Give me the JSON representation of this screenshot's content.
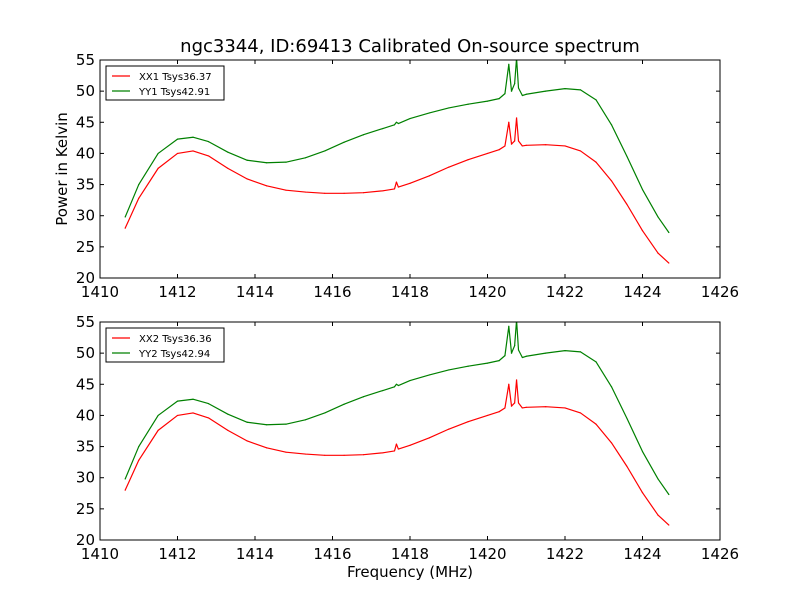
{
  "title": "ngc3344, ID:69413 Calibrated On-source spectrum",
  "xlabel": "Frequency (MHz)",
  "ylabel": "Power in Kelvin",
  "colors": {
    "xx": "#ff0000",
    "yy": "#008000",
    "axes": "#000000",
    "background": "#ffffff"
  },
  "chart_data": [
    {
      "type": "line",
      "ylabel": "Power in Kelvin",
      "xlabel": "",
      "xlim": [
        1410,
        1426
      ],
      "ylim": [
        20,
        55
      ],
      "xticks": [
        1410,
        1412,
        1414,
        1416,
        1418,
        1420,
        1422,
        1424,
        1426
      ],
      "yticks": [
        20,
        25,
        30,
        35,
        40,
        45,
        50,
        55
      ],
      "grid": false,
      "legend_position": "top-left",
      "series": [
        {
          "name": "XX1 Tsys36.37",
          "color": "#ff0000",
          "x": [
            1410.65,
            1411.0,
            1411.5,
            1412.0,
            1412.4,
            1412.8,
            1413.3,
            1413.8,
            1414.3,
            1414.8,
            1415.3,
            1415.8,
            1416.3,
            1416.8,
            1417.3,
            1417.6,
            1417.65,
            1417.7,
            1418.0,
            1418.5,
            1419.0,
            1419.5,
            1420.0,
            1420.3,
            1420.45,
            1420.55,
            1420.62,
            1420.7,
            1420.75,
            1420.8,
            1420.9,
            1421.0,
            1421.5,
            1422.0,
            1422.4,
            1422.8,
            1423.2,
            1423.6,
            1424.0,
            1424.4,
            1424.68
          ],
          "values": [
            28.0,
            32.8,
            37.6,
            40.0,
            40.4,
            39.6,
            37.6,
            35.9,
            34.8,
            34.1,
            33.8,
            33.6,
            33.6,
            33.7,
            34.0,
            34.3,
            35.4,
            34.6,
            35.2,
            36.4,
            37.8,
            39.0,
            40.0,
            40.6,
            41.2,
            45.0,
            41.5,
            42.0,
            45.7,
            42.0,
            41.2,
            41.3,
            41.4,
            41.2,
            40.4,
            38.6,
            35.6,
            31.8,
            27.6,
            24.0,
            22.4
          ]
        },
        {
          "name": "YY1 Tsys42.91",
          "color": "#008000",
          "x": [
            1410.65,
            1411.0,
            1411.5,
            1412.0,
            1412.4,
            1412.8,
            1413.3,
            1413.8,
            1414.3,
            1414.8,
            1415.3,
            1415.8,
            1416.3,
            1416.8,
            1417.3,
            1417.6,
            1417.65,
            1417.7,
            1418.0,
            1418.5,
            1419.0,
            1419.5,
            1420.0,
            1420.3,
            1420.45,
            1420.55,
            1420.62,
            1420.7,
            1420.75,
            1420.8,
            1420.9,
            1421.0,
            1421.5,
            1422.0,
            1422.4,
            1422.8,
            1423.2,
            1423.6,
            1424.0,
            1424.4,
            1424.68
          ],
          "values": [
            29.8,
            35.0,
            40.0,
            42.3,
            42.6,
            41.9,
            40.2,
            38.9,
            38.5,
            38.6,
            39.3,
            40.4,
            41.8,
            43.0,
            44.0,
            44.6,
            45.0,
            44.8,
            45.6,
            46.5,
            47.3,
            47.9,
            48.4,
            48.8,
            49.6,
            54.3,
            50.0,
            51.2,
            55.3,
            50.5,
            49.3,
            49.5,
            50.0,
            50.4,
            50.2,
            48.6,
            44.6,
            39.5,
            34.2,
            29.8,
            27.3
          ]
        }
      ]
    },
    {
      "type": "line",
      "ylabel": "",
      "xlabel": "Frequency (MHz)",
      "xlim": [
        1410,
        1426
      ],
      "ylim": [
        20,
        55
      ],
      "xticks": [
        1410,
        1412,
        1414,
        1416,
        1418,
        1420,
        1422,
        1424,
        1426
      ],
      "yticks": [
        20,
        25,
        30,
        35,
        40,
        45,
        50,
        55
      ],
      "grid": false,
      "legend_position": "top-left",
      "series": [
        {
          "name": "XX2 Tsys36.36",
          "color": "#ff0000",
          "x": [
            1410.65,
            1411.0,
            1411.5,
            1412.0,
            1412.4,
            1412.8,
            1413.3,
            1413.8,
            1414.3,
            1414.8,
            1415.3,
            1415.8,
            1416.3,
            1416.8,
            1417.3,
            1417.6,
            1417.65,
            1417.7,
            1418.0,
            1418.5,
            1419.0,
            1419.5,
            1420.0,
            1420.3,
            1420.45,
            1420.55,
            1420.62,
            1420.7,
            1420.75,
            1420.8,
            1420.9,
            1421.0,
            1421.5,
            1422.0,
            1422.4,
            1422.8,
            1423.2,
            1423.6,
            1424.0,
            1424.4,
            1424.68
          ],
          "values": [
            28.0,
            32.8,
            37.6,
            40.0,
            40.4,
            39.6,
            37.6,
            35.9,
            34.8,
            34.1,
            33.8,
            33.6,
            33.6,
            33.7,
            34.0,
            34.3,
            35.4,
            34.6,
            35.2,
            36.4,
            37.8,
            39.0,
            40.0,
            40.6,
            41.2,
            45.0,
            41.5,
            42.0,
            45.7,
            42.0,
            41.2,
            41.3,
            41.4,
            41.2,
            40.4,
            38.6,
            35.6,
            31.8,
            27.6,
            24.0,
            22.4
          ]
        },
        {
          "name": "YY2 Tsys42.94",
          "color": "#008000",
          "x": [
            1410.65,
            1411.0,
            1411.5,
            1412.0,
            1412.4,
            1412.8,
            1413.3,
            1413.8,
            1414.3,
            1414.8,
            1415.3,
            1415.8,
            1416.3,
            1416.8,
            1417.3,
            1417.6,
            1417.65,
            1417.7,
            1418.0,
            1418.5,
            1419.0,
            1419.5,
            1420.0,
            1420.3,
            1420.45,
            1420.55,
            1420.62,
            1420.7,
            1420.75,
            1420.8,
            1420.9,
            1421.0,
            1421.5,
            1422.0,
            1422.4,
            1422.8,
            1423.2,
            1423.6,
            1424.0,
            1424.4,
            1424.68
          ],
          "values": [
            29.8,
            35.0,
            40.0,
            42.3,
            42.6,
            41.9,
            40.2,
            38.9,
            38.5,
            38.6,
            39.3,
            40.4,
            41.8,
            43.0,
            44.0,
            44.6,
            45.0,
            44.8,
            45.6,
            46.5,
            47.3,
            47.9,
            48.4,
            48.8,
            49.6,
            54.3,
            50.0,
            51.2,
            55.3,
            50.5,
            49.3,
            49.5,
            50.0,
            50.4,
            50.2,
            48.6,
            44.6,
            39.5,
            34.2,
            29.8,
            27.3
          ]
        }
      ]
    }
  ]
}
